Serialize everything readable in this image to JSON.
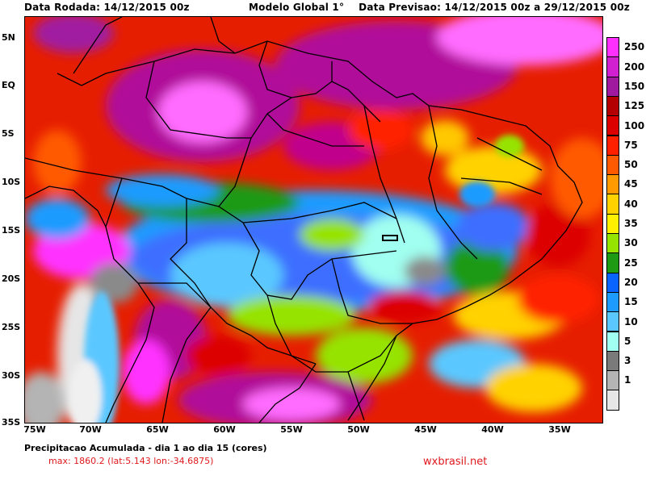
{
  "header": {
    "left": "Data Rodada: 14/12/2015 00z",
    "center": "Modelo Global 1°",
    "right": "Data Previsao: 14/12/2015 00z a 29/12/2015 00z"
  },
  "map": {
    "lat_labels": [
      "5N",
      "EQ",
      "5S",
      "10S",
      "15S",
      "20S",
      "25S",
      "30S",
      "35S"
    ],
    "lon_labels": [
      "75W",
      "70W",
      "65W",
      "60W",
      "55W",
      "50W",
      "45W",
      "40W",
      "35W"
    ],
    "extent": {
      "lon_min": -75,
      "lon_max": -32,
      "lat_min": -35,
      "lat_max": 6.7
    }
  },
  "colorbar": {
    "labels": [
      "250",
      "200",
      "150",
      "125",
      "100",
      "75",
      "50",
      "45",
      "40",
      "35",
      "30",
      "25",
      "20",
      "15",
      "10",
      "5",
      "3",
      "1"
    ],
    "colors": [
      "#ff30ff",
      "#d020d0",
      "#a01aa0",
      "#b40000",
      "#dc0000",
      "#ff2000",
      "#ff5a00",
      "#ff9a00",
      "#ffd200",
      "#fff000",
      "#96e300",
      "#1e9a14",
      "#0a64ff",
      "#1e9bff",
      "#5ac8ff",
      "#a0fff0",
      "#7a7a7a",
      "#b4b4b4",
      "#e6e6e6"
    ]
  },
  "footer": {
    "title": "Precipitacao Acumulada - dia 1 ao dia 15 (cores)",
    "max": "max: 1860.2 (lat:5.143 lon:-34.6875)",
    "site": "wxbrasil.net"
  }
}
